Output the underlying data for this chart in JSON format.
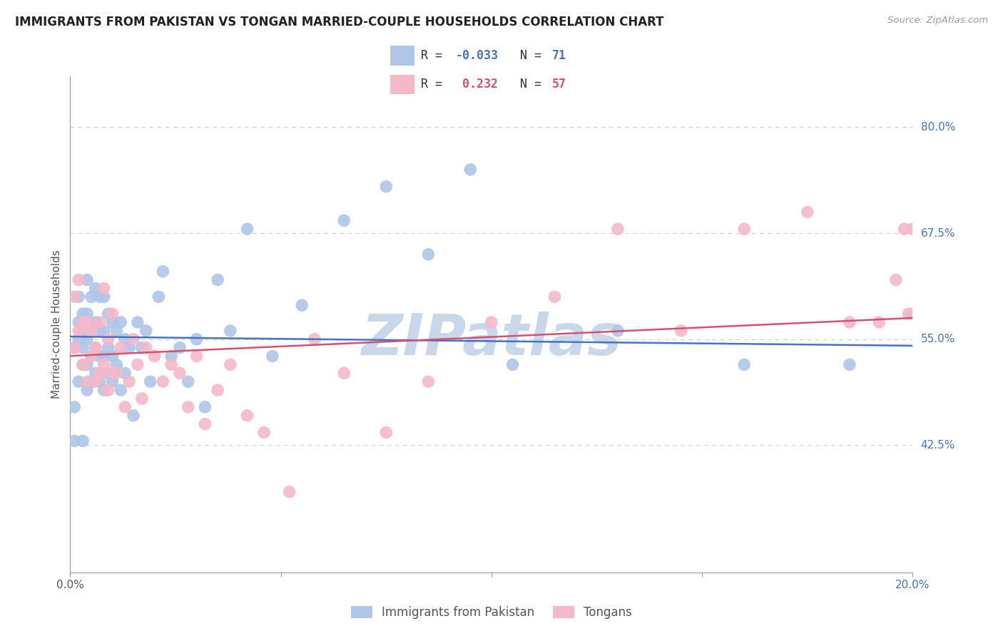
{
  "title": "IMMIGRANTS FROM PAKISTAN VS TONGAN MARRIED-COUPLE HOUSEHOLDS CORRELATION CHART",
  "source": "Source: ZipAtlas.com",
  "ylabel": "Married-couple Households",
  "ytick_vals": [
    0.8,
    0.675,
    0.55,
    0.425
  ],
  "ytick_labels": [
    "80.0%",
    "67.5%",
    "55.0%",
    "42.5%"
  ],
  "xlim": [
    0.0,
    0.2
  ],
  "ylim": [
    0.275,
    0.86
  ],
  "legend_blue_label": "Immigrants from Pakistan",
  "legend_pink_label": "Tongans",
  "blue_R": "-0.033",
  "blue_N": "71",
  "pink_R": "0.232",
  "pink_N": "57",
  "blue_scatter_x": [
    0.001,
    0.001,
    0.001,
    0.002,
    0.002,
    0.002,
    0.002,
    0.003,
    0.003,
    0.003,
    0.003,
    0.003,
    0.004,
    0.004,
    0.004,
    0.004,
    0.004,
    0.005,
    0.005,
    0.005,
    0.005,
    0.006,
    0.006,
    0.006,
    0.006,
    0.007,
    0.007,
    0.007,
    0.007,
    0.008,
    0.008,
    0.008,
    0.008,
    0.009,
    0.009,
    0.009,
    0.01,
    0.01,
    0.01,
    0.011,
    0.011,
    0.012,
    0.012,
    0.013,
    0.013,
    0.014,
    0.015,
    0.016,
    0.017,
    0.018,
    0.019,
    0.021,
    0.022,
    0.024,
    0.026,
    0.028,
    0.03,
    0.032,
    0.035,
    0.038,
    0.042,
    0.048,
    0.055,
    0.065,
    0.075,
    0.085,
    0.095,
    0.105,
    0.13,
    0.16,
    0.185
  ],
  "blue_scatter_y": [
    0.43,
    0.47,
    0.54,
    0.5,
    0.55,
    0.57,
    0.6,
    0.52,
    0.54,
    0.56,
    0.58,
    0.43,
    0.49,
    0.52,
    0.55,
    0.58,
    0.62,
    0.5,
    0.53,
    0.56,
    0.6,
    0.51,
    0.54,
    0.57,
    0.61,
    0.5,
    0.53,
    0.56,
    0.6,
    0.49,
    0.53,
    0.56,
    0.6,
    0.51,
    0.54,
    0.58,
    0.5,
    0.53,
    0.57,
    0.52,
    0.56,
    0.49,
    0.57,
    0.51,
    0.55,
    0.54,
    0.46,
    0.57,
    0.54,
    0.56,
    0.5,
    0.6,
    0.63,
    0.53,
    0.54,
    0.5,
    0.55,
    0.47,
    0.62,
    0.56,
    0.68,
    0.53,
    0.59,
    0.69,
    0.73,
    0.65,
    0.75,
    0.52,
    0.56,
    0.52,
    0.52
  ],
  "pink_scatter_x": [
    0.001,
    0.001,
    0.002,
    0.002,
    0.003,
    0.003,
    0.004,
    0.004,
    0.005,
    0.005,
    0.006,
    0.006,
    0.007,
    0.007,
    0.008,
    0.008,
    0.009,
    0.009,
    0.01,
    0.01,
    0.011,
    0.012,
    0.013,
    0.014,
    0.015,
    0.016,
    0.017,
    0.018,
    0.02,
    0.022,
    0.024,
    0.026,
    0.028,
    0.03,
    0.032,
    0.035,
    0.038,
    0.042,
    0.046,
    0.052,
    0.058,
    0.065,
    0.075,
    0.085,
    0.1,
    0.115,
    0.13,
    0.145,
    0.16,
    0.175,
    0.185,
    0.192,
    0.196,
    0.198,
    0.199,
    0.2,
    0.2
  ],
  "pink_scatter_y": [
    0.6,
    0.54,
    0.56,
    0.62,
    0.52,
    0.57,
    0.5,
    0.57,
    0.53,
    0.56,
    0.5,
    0.54,
    0.51,
    0.57,
    0.52,
    0.61,
    0.49,
    0.55,
    0.51,
    0.58,
    0.51,
    0.54,
    0.47,
    0.5,
    0.55,
    0.52,
    0.48,
    0.54,
    0.53,
    0.5,
    0.52,
    0.51,
    0.47,
    0.53,
    0.45,
    0.49,
    0.52,
    0.46,
    0.44,
    0.37,
    0.55,
    0.51,
    0.44,
    0.5,
    0.57,
    0.6,
    0.68,
    0.56,
    0.68,
    0.7,
    0.57,
    0.57,
    0.62,
    0.68,
    0.58,
    0.68,
    0.58
  ],
  "blue_color": "#aec6e8",
  "pink_color": "#f5b8c8",
  "blue_line_color": "#4472c4",
  "pink_line_color": "#d45070",
  "watermark_text": "ZIPatlas",
  "watermark_color": "#c8d8ea",
  "background_color": "#ffffff",
  "grid_color": "#cccccc"
}
